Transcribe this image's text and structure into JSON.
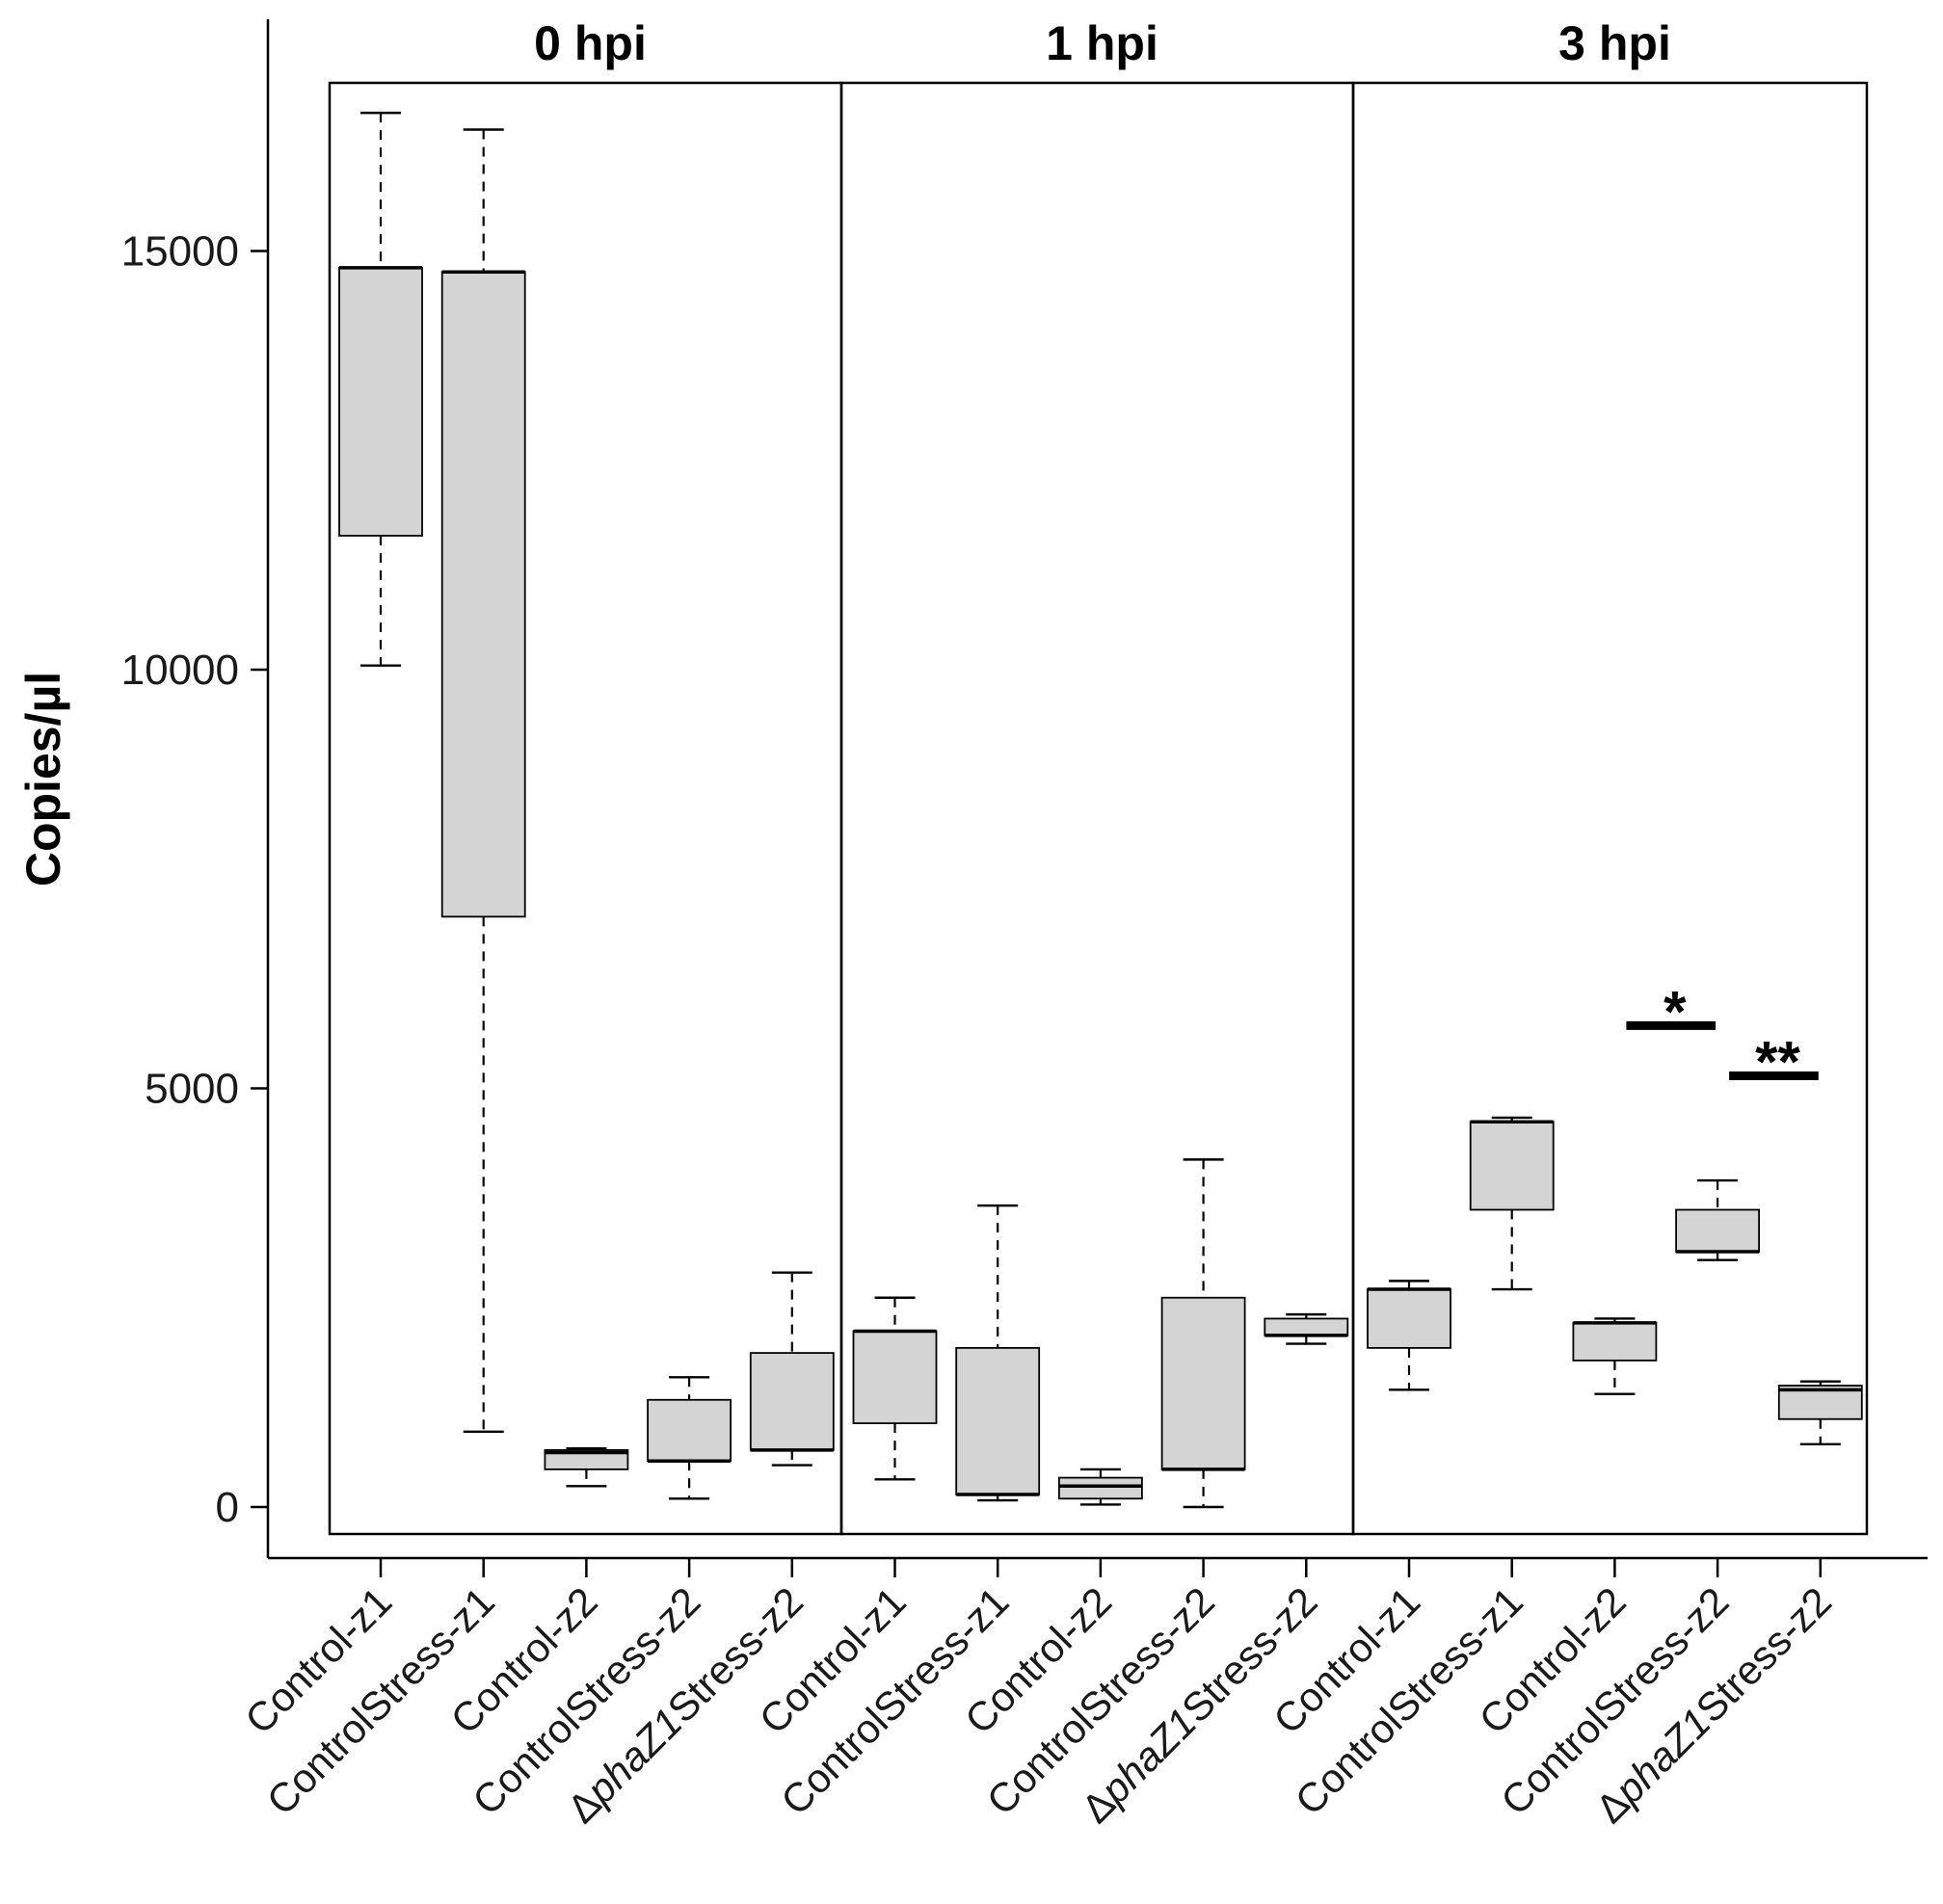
{
  "chart_data": {
    "type": "boxplot",
    "ylabel": "Copies/µl",
    "ylim": [
      -320,
      17600
    ],
    "yticks": [
      0,
      5000,
      10000,
      15000
    ],
    "panels": [
      {
        "title": "0 hpi"
      },
      {
        "title": "1 hpi"
      },
      {
        "title": "3 hpi"
      }
    ],
    "groups": [
      {
        "panel": 0,
        "label_prefix": "Control-",
        "label_italic": "",
        "label_suffix": "z1",
        "min": 10050,
        "q1": 11600,
        "median": 14800,
        "q3": 14800,
        "max": 16650
      },
      {
        "panel": 0,
        "label_prefix": "ControlStress-",
        "label_italic": "",
        "label_suffix": "z1",
        "min": 900,
        "q1": 7050,
        "median": 14750,
        "q3": 14750,
        "max": 16450
      },
      {
        "panel": 0,
        "label_prefix": "Control-",
        "label_italic": "",
        "label_suffix": "z2",
        "min": 250,
        "q1": 450,
        "median": 650,
        "q3": 680,
        "max": 700
      },
      {
        "panel": 0,
        "label_prefix": "ControlStress-",
        "label_italic": "",
        "label_suffix": "z2",
        "min": 100,
        "q1": 550,
        "median": 550,
        "q3": 1280,
        "max": 1550
      },
      {
        "panel": 0,
        "label_prefix": "Δ",
        "label_italic": "phaZ1",
        "label_suffix": "Stress-z2",
        "min": 500,
        "q1": 680,
        "median": 680,
        "q3": 1840,
        "max": 2800
      },
      {
        "panel": 1,
        "label_prefix": "Control-",
        "label_italic": "",
        "label_suffix": "z1",
        "min": 330,
        "q1": 1000,
        "median": 2100,
        "q3": 2100,
        "max": 2500
      },
      {
        "panel": 1,
        "label_prefix": "ControlStress-",
        "label_italic": "",
        "label_suffix": "z1",
        "min": 80,
        "q1": 150,
        "median": 150,
        "q3": 1900,
        "max": 3600
      },
      {
        "panel": 1,
        "label_prefix": "Control-",
        "label_italic": "",
        "label_suffix": "z2",
        "min": 30,
        "q1": 100,
        "median": 250,
        "q3": 350,
        "max": 450
      },
      {
        "panel": 1,
        "label_prefix": "ControlStress-",
        "label_italic": "",
        "label_suffix": "z2",
        "min": 0,
        "q1": 450,
        "median": 450,
        "q3": 2500,
        "max": 4150
      },
      {
        "panel": 1,
        "label_prefix": "Δ",
        "label_italic": "phaZ1",
        "label_suffix": "Stress-z2",
        "min": 1950,
        "q1": 2050,
        "median": 2050,
        "q3": 2250,
        "max": 2300
      },
      {
        "panel": 2,
        "label_prefix": "Control-",
        "label_italic": "",
        "label_suffix": "z1",
        "min": 1400,
        "q1": 1900,
        "median": 2600,
        "q3": 2600,
        "max": 2700
      },
      {
        "panel": 2,
        "label_prefix": "ControlStress-",
        "label_italic": "",
        "label_suffix": "z1",
        "min": 2600,
        "q1": 3550,
        "median": 4600,
        "q3": 4600,
        "max": 4650
      },
      {
        "panel": 2,
        "label_prefix": "Control-",
        "label_italic": "",
        "label_suffix": "z2",
        "min": 1350,
        "q1": 1750,
        "median": 2200,
        "q3": 2200,
        "max": 2250
      },
      {
        "panel": 2,
        "label_prefix": "ControlStress-",
        "label_italic": "",
        "label_suffix": "z2",
        "min": 2950,
        "q1": 3050,
        "median": 3050,
        "q3": 3550,
        "max": 3900
      },
      {
        "panel": 2,
        "label_prefix": "Δ",
        "label_italic": "phaZ1",
        "label_suffix": "Stress-z2",
        "min": 750,
        "q1": 1050,
        "median": 1400,
        "q3": 1450,
        "max": 1500
      }
    ],
    "significance": [
      {
        "label": "*",
        "from_group": 12,
        "to_group": 13,
        "y": 5750
      },
      {
        "label": "**",
        "from_group": 13,
        "to_group": 14,
        "y": 5150
      }
    ]
  }
}
